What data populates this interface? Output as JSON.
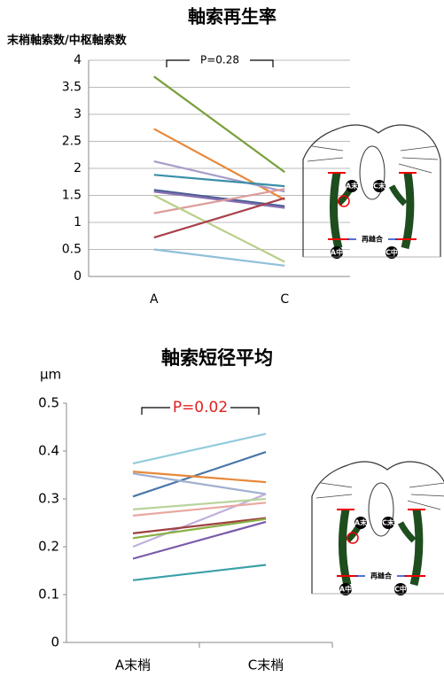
{
  "chart_data": [
    {
      "type": "line",
      "title": "軸索再生率",
      "y_label": "末梢軸索数/中枢軸索数",
      "categories": [
        "A",
        "C"
      ],
      "annotation": "P=0.28",
      "ylim": [
        0,
        4
      ],
      "yticks": [
        0,
        0.5,
        1,
        1.5,
        2,
        2.5,
        3,
        3.5,
        4
      ],
      "grid": true,
      "series": [
        {
          "color": "#77a03a",
          "values": [
            3.7,
            1.93
          ]
        },
        {
          "color": "#e8883a",
          "values": [
            2.73,
            1.42
          ]
        },
        {
          "color": "#a99cc8",
          "values": [
            2.13,
            1.57
          ]
        },
        {
          "color": "#3a8fa8",
          "values": [
            1.88,
            1.67
          ]
        },
        {
          "color": "#4a5f95",
          "values": [
            1.6,
            1.3
          ]
        },
        {
          "color": "#8a6fb0",
          "values": [
            1.57,
            1.27
          ]
        },
        {
          "color": "#dd9c9c",
          "values": [
            1.17,
            1.62
          ]
        },
        {
          "color": "#b8cf8a",
          "values": [
            1.5,
            0.27
          ]
        },
        {
          "color": "#a8404a",
          "values": [
            0.72,
            1.45
          ]
        },
        {
          "color": "#8fc0dc",
          "values": [
            0.5,
            0.2
          ]
        }
      ],
      "diagram_labels": [
        "A末",
        "C末",
        "再縫合",
        "A中",
        "C中"
      ]
    },
    {
      "type": "line",
      "title": "軸索短径平均",
      "y_label": "μm",
      "categories": [
        "A末梢",
        "C末梢"
      ],
      "annotation": "P=0.02",
      "ylim": [
        0,
        0.5
      ],
      "yticks": [
        0,
        0.1,
        0.2,
        0.3,
        0.4,
        0.5
      ],
      "grid": false,
      "series": [
        {
          "color": "#93ccdc",
          "values": [
            0.374,
            0.436
          ]
        },
        {
          "color": "#4a76a8",
          "values": [
            0.305,
            0.398
          ]
        },
        {
          "color": "#e8883a",
          "values": [
            0.357,
            0.335
          ]
        },
        {
          "color": "#a0b0d0",
          "values": [
            0.353,
            0.31
          ]
        },
        {
          "color": "#c0b0dc",
          "values": [
            0.2,
            0.31
          ]
        },
        {
          "color": "#b8d49a",
          "values": [
            0.278,
            0.3
          ]
        },
        {
          "color": "#e8a8a0",
          "values": [
            0.265,
            0.292
          ]
        },
        {
          "color": "#a04040",
          "values": [
            0.228,
            0.26
          ]
        },
        {
          "color": "#88b040",
          "values": [
            0.218,
            0.258
          ]
        },
        {
          "color": "#7a5aa8",
          "values": [
            0.175,
            0.252
          ]
        },
        {
          "color": "#3aa0a8",
          "values": [
            0.13,
            0.162
          ]
        }
      ],
      "diagram_labels": [
        "A末",
        "C末",
        "再縫合",
        "A中",
        "C中"
      ]
    }
  ]
}
